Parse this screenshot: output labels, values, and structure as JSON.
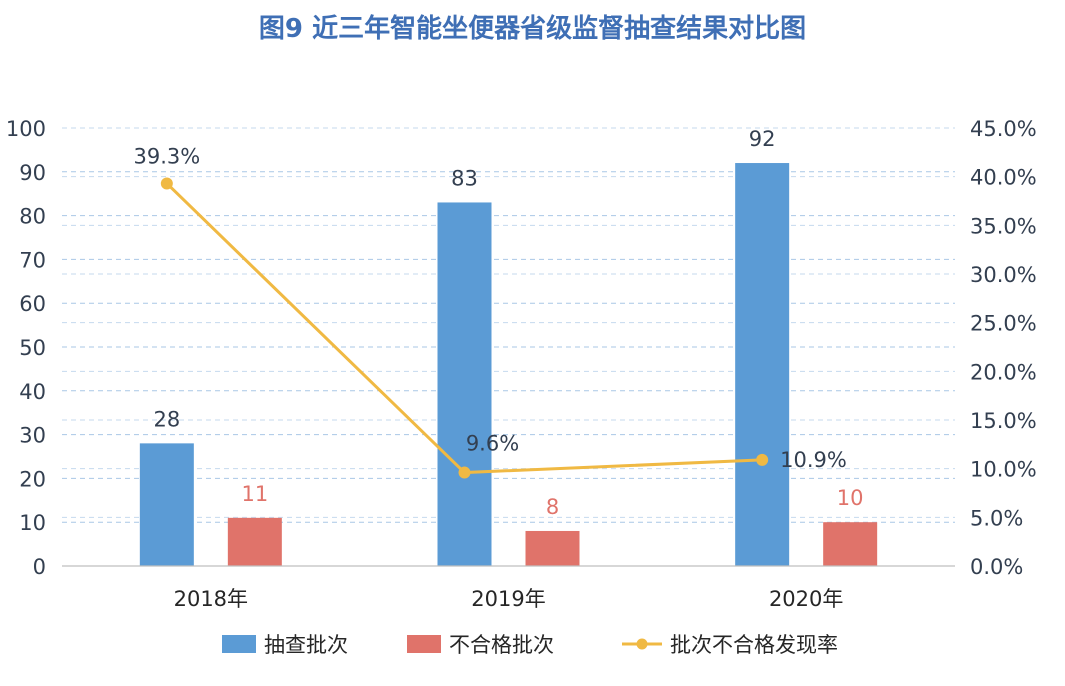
{
  "chart_data": {
    "type": "bar",
    "title": "图9  近三年智能坐便器省级监督抽查结果对比图",
    "categories": [
      "2018年",
      "2019年",
      "2020年"
    ],
    "series": [
      {
        "name": "抽查批次",
        "kind": "bar",
        "axis": "left",
        "color": "#5b9bd5",
        "label_color": "#333f50",
        "values": [
          28,
          83,
          92
        ],
        "labels": [
          "28",
          "83",
          "92"
        ]
      },
      {
        "name": "不合格批次",
        "kind": "bar",
        "axis": "left",
        "color": "#e0736a",
        "label_color": "#e0736a",
        "values": [
          11,
          8,
          10
        ],
        "labels": [
          "11",
          "8",
          "10"
        ]
      },
      {
        "name": "批次不合格发现率",
        "kind": "line",
        "axis": "right",
        "color": "#f0b943",
        "label_color": "#333f50",
        "values": [
          39.3,
          9.6,
          10.9
        ],
        "labels": [
          "39.3%",
          "9.6%",
          "10.9%"
        ]
      }
    ],
    "y_left": {
      "min": 0,
      "max": 100,
      "ticks": [
        "0",
        "10",
        "20",
        "30",
        "40",
        "50",
        "60",
        "70",
        "80",
        "90",
        "100"
      ]
    },
    "y_right": {
      "min": 0,
      "max": 45,
      "ticks": [
        "0.0%",
        "5.0%",
        "10.0%",
        "15.0%",
        "20.0%",
        "25.0%",
        "30.0%",
        "35.0%",
        "40.0%",
        "45.0%"
      ]
    },
    "grid": true,
    "legend": "bottom"
  }
}
